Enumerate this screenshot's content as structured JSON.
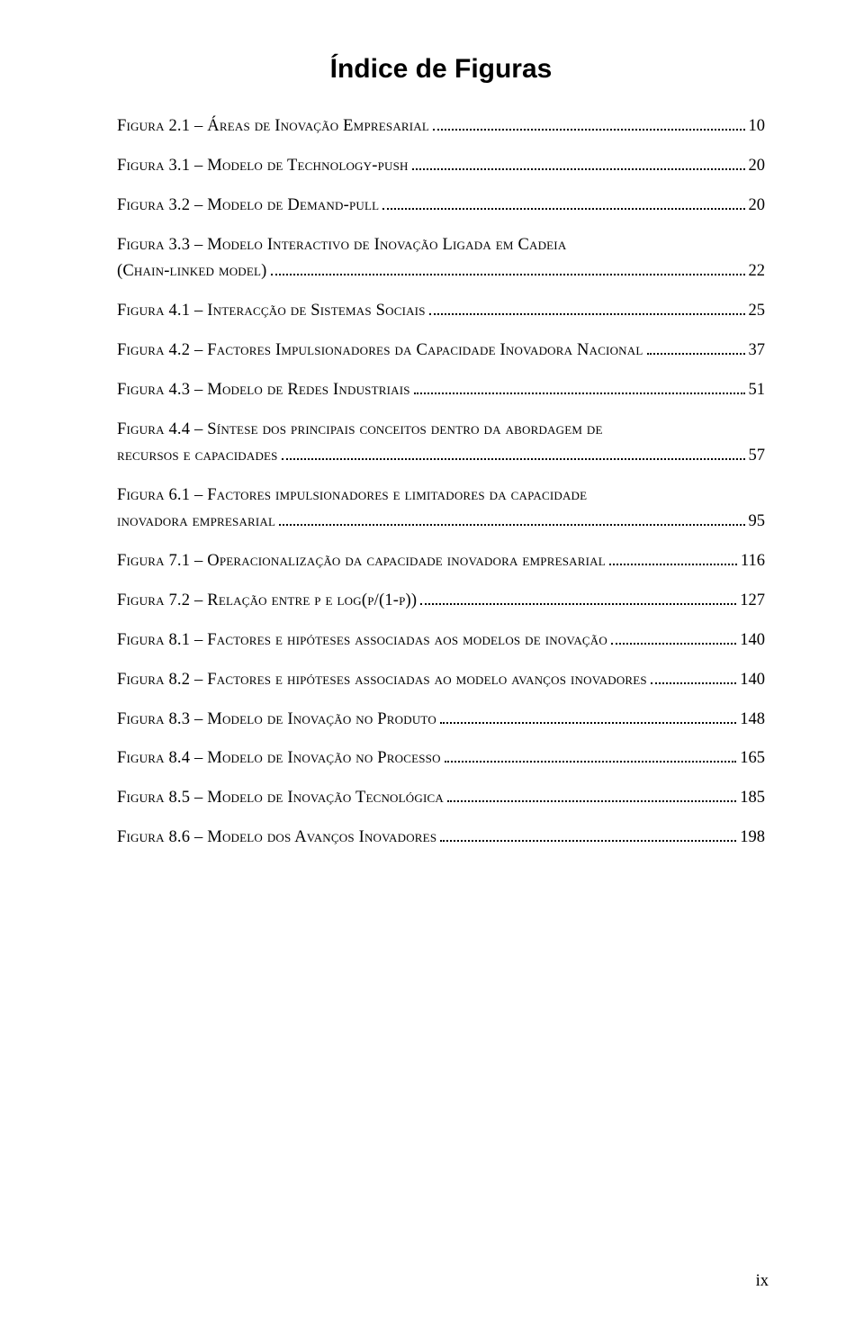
{
  "title": "Índice de Figuras",
  "folio": "ix",
  "entries": [
    {
      "label": "Figura 2.1 – Áreas de Inovação Empresarial",
      "page": "10"
    },
    {
      "label": "Figura 3.1 – Modelo de Technology-push",
      "page": "20"
    },
    {
      "label": "Figura 3.2 – Modelo de Demand-pull",
      "page": "20"
    },
    {
      "label": "Figura 3.3 – Modelo Interactivo de Inovação Ligada em Cadeia (Chain-linked model)",
      "page": "22"
    },
    {
      "label": "Figura 4.1 – Interacção de Sistemas Sociais",
      "page": "25"
    },
    {
      "label": "Figura 4.2 – Factores Impulsionadores da Capacidade Inovadora Nacional",
      "page": "37"
    },
    {
      "label": "Figura 4.3 – Modelo de Redes Industriais",
      "page": "51"
    },
    {
      "label": "Figura 4.4 – Síntese dos principais conceitos dentro da abordagem de recursos e capacidades",
      "page": "57"
    },
    {
      "label": "Figura 6.1 – Factores impulsionadores e limitadores da capacidade inovadora empresarial",
      "page": "95"
    },
    {
      "label": "Figura 7.1 – Operacionalização da capacidade inovadora empresarial",
      "page": "116"
    },
    {
      "label": "Figura 7.2 – Relação entre p e log(p/(1-p))",
      "page": "127"
    },
    {
      "label": "Figura 8.1 – Factores e hipóteses associadas aos modelos de inovação",
      "page": "140"
    },
    {
      "label": "Figura 8.2 – Factores e hipóteses associadas ao modelo avanços inovadores",
      "page": "140"
    },
    {
      "label": "Figura 8.3 – Modelo de Inovação no Produto",
      "page": "148"
    },
    {
      "label": "Figura 8.4 – Modelo de Inovação no Processo",
      "page": "165"
    },
    {
      "label": "Figura 8.5 – Modelo de Inovação Tecnológica",
      "page": "185"
    },
    {
      "label": "Figura 8.6 – Modelo dos Avanços Inovadores",
      "page": "198"
    }
  ]
}
